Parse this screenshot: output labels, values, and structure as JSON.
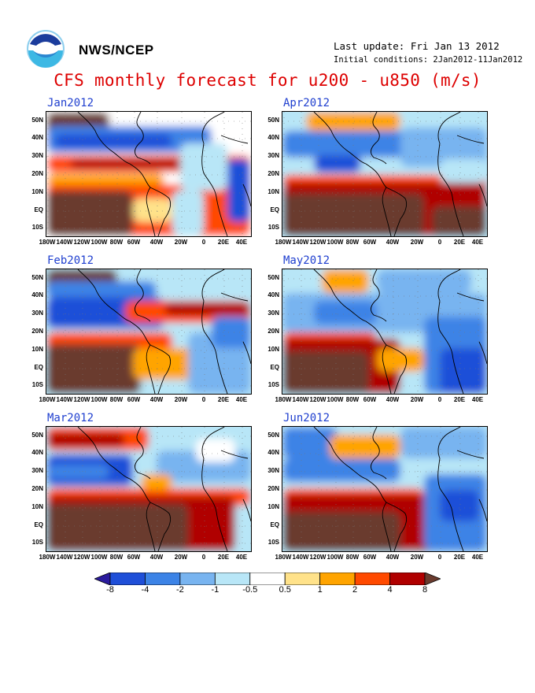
{
  "header": {
    "agency": "NWS/NCEP",
    "last_update": "Last update: Fri Jan 13 2012",
    "initial_conditions": "Initial conditions: 2Jan2012-11Jan2012",
    "title": "CFS monthly forecast for u200 - u850 (m/s)"
  },
  "logo": {
    "text": "NOAA"
  },
  "axes": {
    "lat_labels": [
      "50N",
      "40N",
      "30N",
      "20N",
      "10N",
      "EQ",
      "10S"
    ],
    "lon_labels": [
      "180W",
      "140W",
      "120W",
      "100W",
      "80W",
      "60W",
      "40W",
      "20W",
      "0",
      "20E",
      "40E"
    ]
  },
  "panels": [
    {
      "title": "Jan2012"
    },
    {
      "title": "Feb2012"
    },
    {
      "title": "Mar2012"
    },
    {
      "title": "Apr2012"
    },
    {
      "title": "May2012"
    },
    {
      "title": "Jun2012"
    }
  ],
  "colorbar": {
    "labels": [
      "-8",
      "-4",
      "-2",
      "-1",
      "-0.5",
      "0.5",
      "1",
      "2",
      "4",
      "8"
    ],
    "colors": [
      "#2b1b9e",
      "#1f4fd8",
      "#3c83e6",
      "#78b4f0",
      "#b8e6f7",
      "#ffffff",
      "#ffe28a",
      "#ffa400",
      "#ff4a00",
      "#b00000",
      "#6a3b2e"
    ]
  }
}
